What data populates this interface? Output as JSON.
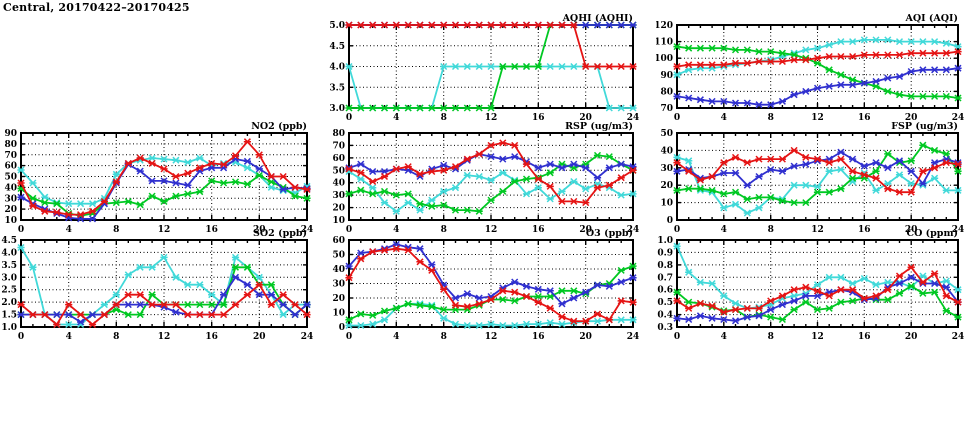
{
  "page": {
    "title": "Central, 20170422–20170425",
    "background": "#ffffff"
  },
  "colors": {
    "red": "#e51414",
    "green": "#00c822",
    "blue": "#3030cf",
    "cyan": "#41d9d9"
  },
  "x_axis": {
    "min": 0,
    "max": 24,
    "major_ticks": [
      0,
      4,
      8,
      12,
      16,
      20,
      24
    ],
    "minor_step": 1,
    "unit": "hour"
  },
  "chart_data": [
    {
      "key": "aqhi",
      "type": "line",
      "title": "AQHI (AQHI)",
      "grid_row": 1,
      "grid_col": 2,
      "ylim": [
        3.0,
        5.0
      ],
      "ytick_vals": [
        3.0,
        3.5,
        4.0,
        4.5,
        5.0
      ],
      "ytick_labels": [
        "3.0",
        "3.5",
        "4.0",
        "4.5",
        "5.0"
      ],
      "series": [
        {
          "color_key": "cyan",
          "values": [
            4,
            3,
            3,
            3,
            3,
            3,
            3,
            3,
            4,
            4,
            4,
            4,
            4,
            4,
            4,
            4,
            4,
            4,
            4,
            4,
            4,
            4,
            3,
            3,
            3
          ]
        },
        {
          "color_key": "green",
          "values": [
            3,
            3,
            3,
            3,
            3,
            3,
            3,
            3,
            3,
            3,
            3,
            3,
            3,
            4,
            4,
            4,
            4,
            5,
            5,
            5,
            5,
            5,
            5,
            5,
            5
          ]
        },
        {
          "color_key": "blue",
          "values": [
            5,
            5,
            5,
            5,
            5,
            5,
            5,
            5,
            5,
            5,
            5,
            5,
            5,
            5,
            5,
            5,
            5,
            5,
            5,
            5,
            5,
            5,
            5,
            5,
            5
          ]
        },
        {
          "color_key": "red",
          "values": [
            5,
            5,
            5,
            5,
            5,
            5,
            5,
            5,
            5,
            5,
            5,
            5,
            5,
            5,
            5,
            5,
            5,
            5,
            5,
            5,
            4,
            4,
            4,
            4,
            4
          ]
        }
      ]
    },
    {
      "key": "aqi",
      "type": "line",
      "title": "AQI (AQI)",
      "grid_row": 1,
      "grid_col": 3,
      "ylim": [
        70,
        120
      ],
      "ytick_vals": [
        70,
        80,
        90,
        100,
        110,
        120
      ],
      "ytick_labels": [
        "70",
        "80",
        "90",
        "100",
        "110",
        "120"
      ],
      "series": [
        {
          "color_key": "cyan",
          "values": [
            90,
            93,
            94,
            94,
            95,
            96,
            97,
            98,
            99,
            101,
            103,
            105,
            106,
            108,
            110,
            110,
            111,
            111,
            111,
            110,
            110,
            110,
            110,
            109,
            107
          ]
        },
        {
          "color_key": "green",
          "values": [
            107,
            106,
            106,
            106,
            106,
            105,
            105,
            104,
            104,
            103,
            102,
            100,
            97,
            93,
            90,
            87,
            85,
            83,
            80,
            78,
            77,
            77,
            77,
            77,
            76
          ]
        },
        {
          "color_key": "blue",
          "values": [
            77,
            76,
            75,
            74,
            74,
            73,
            73,
            72,
            72,
            74,
            78,
            80,
            82,
            83,
            84,
            84,
            85,
            86,
            88,
            89,
            92,
            93,
            93,
            93,
            94
          ]
        },
        {
          "color_key": "red",
          "values": [
            95,
            96,
            96,
            96,
            96,
            97,
            97,
            98,
            98,
            98,
            99,
            99,
            100,
            101,
            101,
            101,
            102,
            102,
            102,
            102,
            103,
            103,
            103,
            103,
            104
          ]
        }
      ]
    },
    {
      "key": "no2",
      "type": "line",
      "title": "NO2 (ppb)",
      "grid_row": 2,
      "grid_col": 1,
      "ylim": [
        10,
        90
      ],
      "ytick_vals": [
        10,
        20,
        30,
        40,
        50,
        60,
        70,
        80,
        90
      ],
      "ytick_labels": [
        "10",
        "20",
        "30",
        "40",
        "50",
        "60",
        "70",
        "80",
        "90"
      ],
      "series": [
        {
          "color_key": "cyan",
          "values": [
            56,
            44,
            31,
            26,
            25,
            25,
            25,
            30,
            52,
            62,
            65,
            67,
            66,
            65,
            63,
            67,
            60,
            62,
            63,
            58,
            51,
            40,
            37,
            35,
            41
          ]
        },
        {
          "color_key": "green",
          "values": [
            39,
            30,
            26,
            25,
            16,
            14,
            16,
            25,
            26,
            27,
            24,
            32,
            27,
            32,
            34,
            36,
            46,
            44,
            45,
            43,
            51,
            45,
            40,
            32,
            30
          ]
        },
        {
          "color_key": "blue",
          "values": [
            31,
            25,
            20,
            16,
            12,
            11,
            11,
            25,
            44,
            61,
            55,
            46,
            46,
            44,
            42,
            55,
            58,
            58,
            66,
            64,
            57,
            50,
            38,
            40,
            39
          ]
        },
        {
          "color_key": "red",
          "values": [
            44,
            23,
            18,
            17,
            15,
            15,
            18,
            27,
            45,
            62,
            67,
            62,
            57,
            50,
            53,
            58,
            62,
            61,
            69,
            82,
            70,
            50,
            50,
            40,
            38
          ]
        }
      ]
    },
    {
      "key": "rsp",
      "type": "line",
      "title": "RSP (ug/m3)",
      "grid_row": 2,
      "grid_col": 2,
      "ylim": [
        10,
        80
      ],
      "ytick_vals": [
        10,
        20,
        30,
        40,
        50,
        60,
        70,
        80
      ],
      "ytick_labels": [
        "10",
        "20",
        "30",
        "40",
        "50",
        "60",
        "70",
        "80"
      ],
      "series": [
        {
          "color_key": "cyan",
          "values": [
            49,
            43,
            36,
            24,
            17,
            24,
            18,
            26,
            33,
            36,
            46,
            45,
            42,
            48,
            42,
            31,
            36,
            27,
            33,
            41,
            35,
            39,
            36,
            30,
            31
          ]
        },
        {
          "color_key": "green",
          "values": [
            31,
            34,
            31,
            33,
            30,
            31,
            23,
            21,
            22,
            18,
            18,
            17,
            26,
            33,
            41,
            43,
            44,
            48,
            55,
            52,
            55,
            62,
            61,
            55,
            50
          ]
        },
        {
          "color_key": "blue",
          "values": [
            52,
            55,
            49,
            49,
            51,
            50,
            45,
            51,
            54,
            51,
            58,
            63,
            61,
            59,
            61,
            57,
            52,
            55,
            52,
            55,
            52,
            44,
            52,
            55,
            53
          ]
        },
        {
          "color_key": "red",
          "values": [
            51,
            48,
            41,
            45,
            51,
            53,
            47,
            49,
            50,
            53,
            59,
            63,
            70,
            72,
            70,
            55,
            43,
            37,
            25,
            25,
            24,
            36,
            38,
            44,
            50
          ]
        }
      ]
    },
    {
      "key": "fsp",
      "type": "line",
      "title": "FSP (ug/m3)",
      "grid_row": 2,
      "grid_col": 3,
      "ylim": [
        0,
        50
      ],
      "ytick_vals": [
        0,
        10,
        20,
        30,
        40,
        50
      ],
      "ytick_labels": [
        "0",
        "10",
        "20",
        "30",
        "40",
        "50"
      ],
      "series": [
        {
          "color_key": "cyan",
          "values": [
            36,
            34,
            17,
            16,
            7,
            9,
            4,
            7,
            13,
            12,
            20,
            20,
            19,
            28,
            29,
            22,
            27,
            17,
            21,
            26,
            21,
            20,
            24,
            17,
            17
          ]
        },
        {
          "color_key": "green",
          "values": [
            17,
            18,
            18,
            17,
            15,
            16,
            12,
            13,
            13,
            11,
            10,
            10,
            16,
            16,
            18,
            24,
            24,
            28,
            38,
            33,
            34,
            43,
            40,
            38,
            28
          ]
        },
        {
          "color_key": "blue",
          "values": [
            28,
            29,
            24,
            25,
            27,
            27,
            20,
            25,
            29,
            28,
            31,
            32,
            34,
            35,
            39,
            35,
            31,
            33,
            30,
            34,
            28,
            21,
            33,
            35,
            33
          ]
        },
        {
          "color_key": "red",
          "values": [
            33,
            28,
            23,
            25,
            33,
            36,
            33,
            35,
            35,
            35,
            40,
            36,
            35,
            33,
            35,
            28,
            26,
            24,
            18,
            16,
            16,
            28,
            30,
            33,
            32
          ]
        }
      ]
    },
    {
      "key": "so2",
      "type": "line",
      "title": "SO2 (ppb)",
      "grid_row": 3,
      "grid_col": 1,
      "ylim": [
        1.0,
        4.5
      ],
      "ytick_vals": [
        1.0,
        1.5,
        2.0,
        2.5,
        3.0,
        3.5,
        4.0,
        4.5
      ],
      "ytick_labels": [
        "1.0",
        "1.5",
        "2.0",
        "2.5",
        "3.0",
        "3.5",
        "4.0",
        "4.5"
      ],
      "series": [
        {
          "color_key": "cyan",
          "values": [
            4.2,
            3.4,
            1.5,
            1.1,
            1.1,
            1.1,
            1.5,
            1.9,
            2.3,
            3.1,
            3.4,
            3.4,
            3.8,
            3.0,
            2.7,
            2.7,
            2.3,
            1.9,
            3.8,
            3.4,
            3.0,
            2.3,
            1.5,
            1.9,
            1.9
          ]
        },
        {
          "color_key": "green",
          "values": [
            1.5,
            1.5,
            1.5,
            1.5,
            1.5,
            1.5,
            1.5,
            1.5,
            1.7,
            1.5,
            1.5,
            2.3,
            1.9,
            1.9,
            1.9,
            1.9,
            1.9,
            1.9,
            3.4,
            3.4,
            2.7,
            2.7,
            1.9,
            1.5,
            1.9
          ]
        },
        {
          "color_key": "blue",
          "values": [
            1.5,
            1.5,
            1.5,
            1.5,
            1.5,
            1.2,
            1.5,
            1.5,
            1.9,
            1.9,
            1.9,
            1.9,
            1.8,
            1.6,
            1.5,
            1.5,
            1.5,
            2.3,
            3.0,
            2.7,
            2.3,
            2.3,
            1.9,
            1.5,
            1.9
          ]
        },
        {
          "color_key": "red",
          "values": [
            1.9,
            1.5,
            1.5,
            1.1,
            1.9,
            1.5,
            1.1,
            1.5,
            1.9,
            2.3,
            2.3,
            1.9,
            1.9,
            1.9,
            1.5,
            1.5,
            1.5,
            1.5,
            1.9,
            2.3,
            2.7,
            1.9,
            2.3,
            1.9,
            1.5
          ]
        }
      ]
    },
    {
      "key": "o3",
      "type": "line",
      "title": "O3 (ppb)",
      "grid_row": 3,
      "grid_col": 2,
      "ylim": [
        0,
        60
      ],
      "ytick_vals": [
        0,
        10,
        20,
        30,
        40,
        50,
        60
      ],
      "ytick_labels": [
        "0",
        "10",
        "20",
        "30",
        "40",
        "50",
        "60"
      ],
      "series": [
        {
          "color_key": "cyan",
          "values": [
            1,
            1,
            2,
            5,
            13,
            16,
            16,
            15,
            6,
            2,
            1,
            1,
            2,
            1,
            1,
            2,
            2,
            3,
            2,
            3,
            4,
            4,
            5,
            5,
            5
          ]
        },
        {
          "color_key": "green",
          "values": [
            5,
            9,
            8,
            11,
            13,
            16,
            15,
            14,
            12,
            12,
            12,
            15,
            19,
            19,
            18,
            21,
            21,
            21,
            25,
            25,
            23,
            29,
            30,
            39,
            42
          ]
        },
        {
          "color_key": "blue",
          "values": [
            42,
            51,
            52,
            54,
            57,
            55,
            54,
            43,
            29,
            20,
            23,
            20,
            21,
            27,
            31,
            28,
            26,
            25,
            16,
            20,
            24,
            29,
            28,
            31,
            34
          ]
        },
        {
          "color_key": "red",
          "values": [
            34,
            47,
            52,
            53,
            54,
            53,
            45,
            39,
            26,
            15,
            14,
            16,
            19,
            25,
            24,
            21,
            17,
            13,
            7,
            4,
            4,
            9,
            5,
            18,
            17
          ]
        }
      ]
    },
    {
      "key": "co",
      "type": "line",
      "title": "CO (ppm)",
      "grid_row": 3,
      "grid_col": 3,
      "ylim": [
        0.3,
        1.0
      ],
      "ytick_vals": [
        0.3,
        0.4,
        0.5,
        0.6,
        0.7,
        0.8,
        0.9,
        1.0
      ],
      "ytick_labels": [
        "0.3",
        "0.4",
        "0.5",
        "0.6",
        "0.7",
        "0.8",
        "0.9",
        "1.0"
      ],
      "series": [
        {
          "color_key": "cyan",
          "values": [
            0.95,
            0.74,
            0.66,
            0.65,
            0.55,
            0.49,
            0.45,
            0.46,
            0.48,
            0.53,
            0.55,
            0.57,
            0.64,
            0.7,
            0.7,
            0.65,
            0.69,
            0.64,
            0.66,
            0.66,
            0.62,
            0.71,
            0.65,
            0.67,
            0.6
          ]
        },
        {
          "color_key": "green",
          "values": [
            0.58,
            0.5,
            0.49,
            0.46,
            0.43,
            0.44,
            0.38,
            0.4,
            0.38,
            0.36,
            0.44,
            0.5,
            0.44,
            0.45,
            0.5,
            0.51,
            0.53,
            0.52,
            0.52,
            0.57,
            0.63,
            0.57,
            0.58,
            0.43,
            0.38
          ]
        },
        {
          "color_key": "blue",
          "values": [
            0.37,
            0.36,
            0.39,
            0.37,
            0.36,
            0.35,
            0.38,
            0.39,
            0.44,
            0.48,
            0.51,
            0.55,
            0.55,
            0.58,
            0.6,
            0.58,
            0.52,
            0.53,
            0.62,
            0.65,
            0.7,
            0.65,
            0.65,
            0.62,
            0.5
          ]
        },
        {
          "color_key": "red",
          "values": [
            0.51,
            0.45,
            0.49,
            0.47,
            0.42,
            0.44,
            0.45,
            0.45,
            0.51,
            0.55,
            0.6,
            0.62,
            0.59,
            0.55,
            0.6,
            0.6,
            0.53,
            0.55,
            0.6,
            0.71,
            0.78,
            0.66,
            0.73,
            0.55,
            0.5
          ]
        }
      ]
    }
  ]
}
